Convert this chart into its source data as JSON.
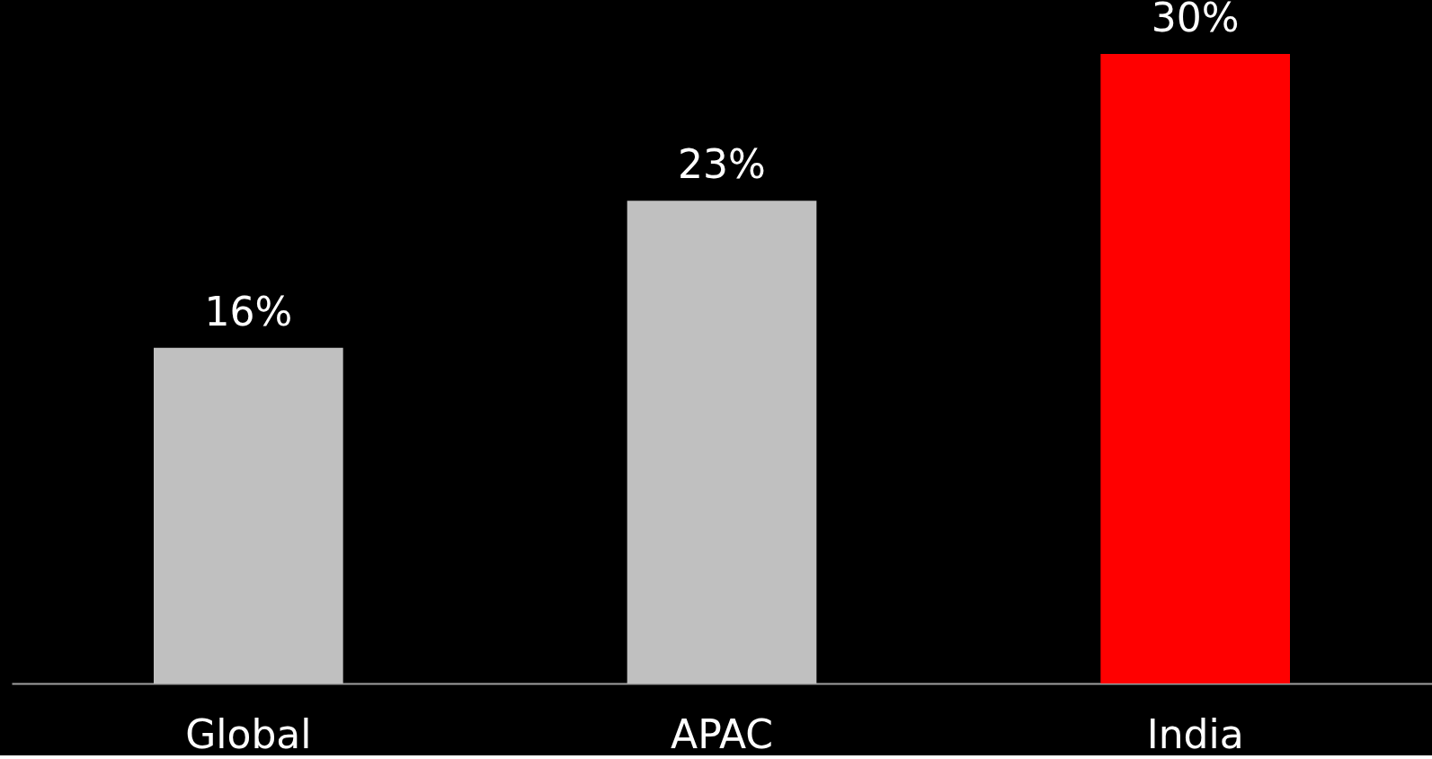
{
  "chart_data": {
    "type": "bar",
    "categories": [
      "Global",
      "APAC",
      "India"
    ],
    "values": [
      16,
      23,
      30
    ],
    "colors": [
      "#c0c0c0",
      "#c0c0c0",
      "#ff0000"
    ],
    "value_labels": [
      "16%",
      "23%",
      "30%"
    ],
    "grid": false
  }
}
